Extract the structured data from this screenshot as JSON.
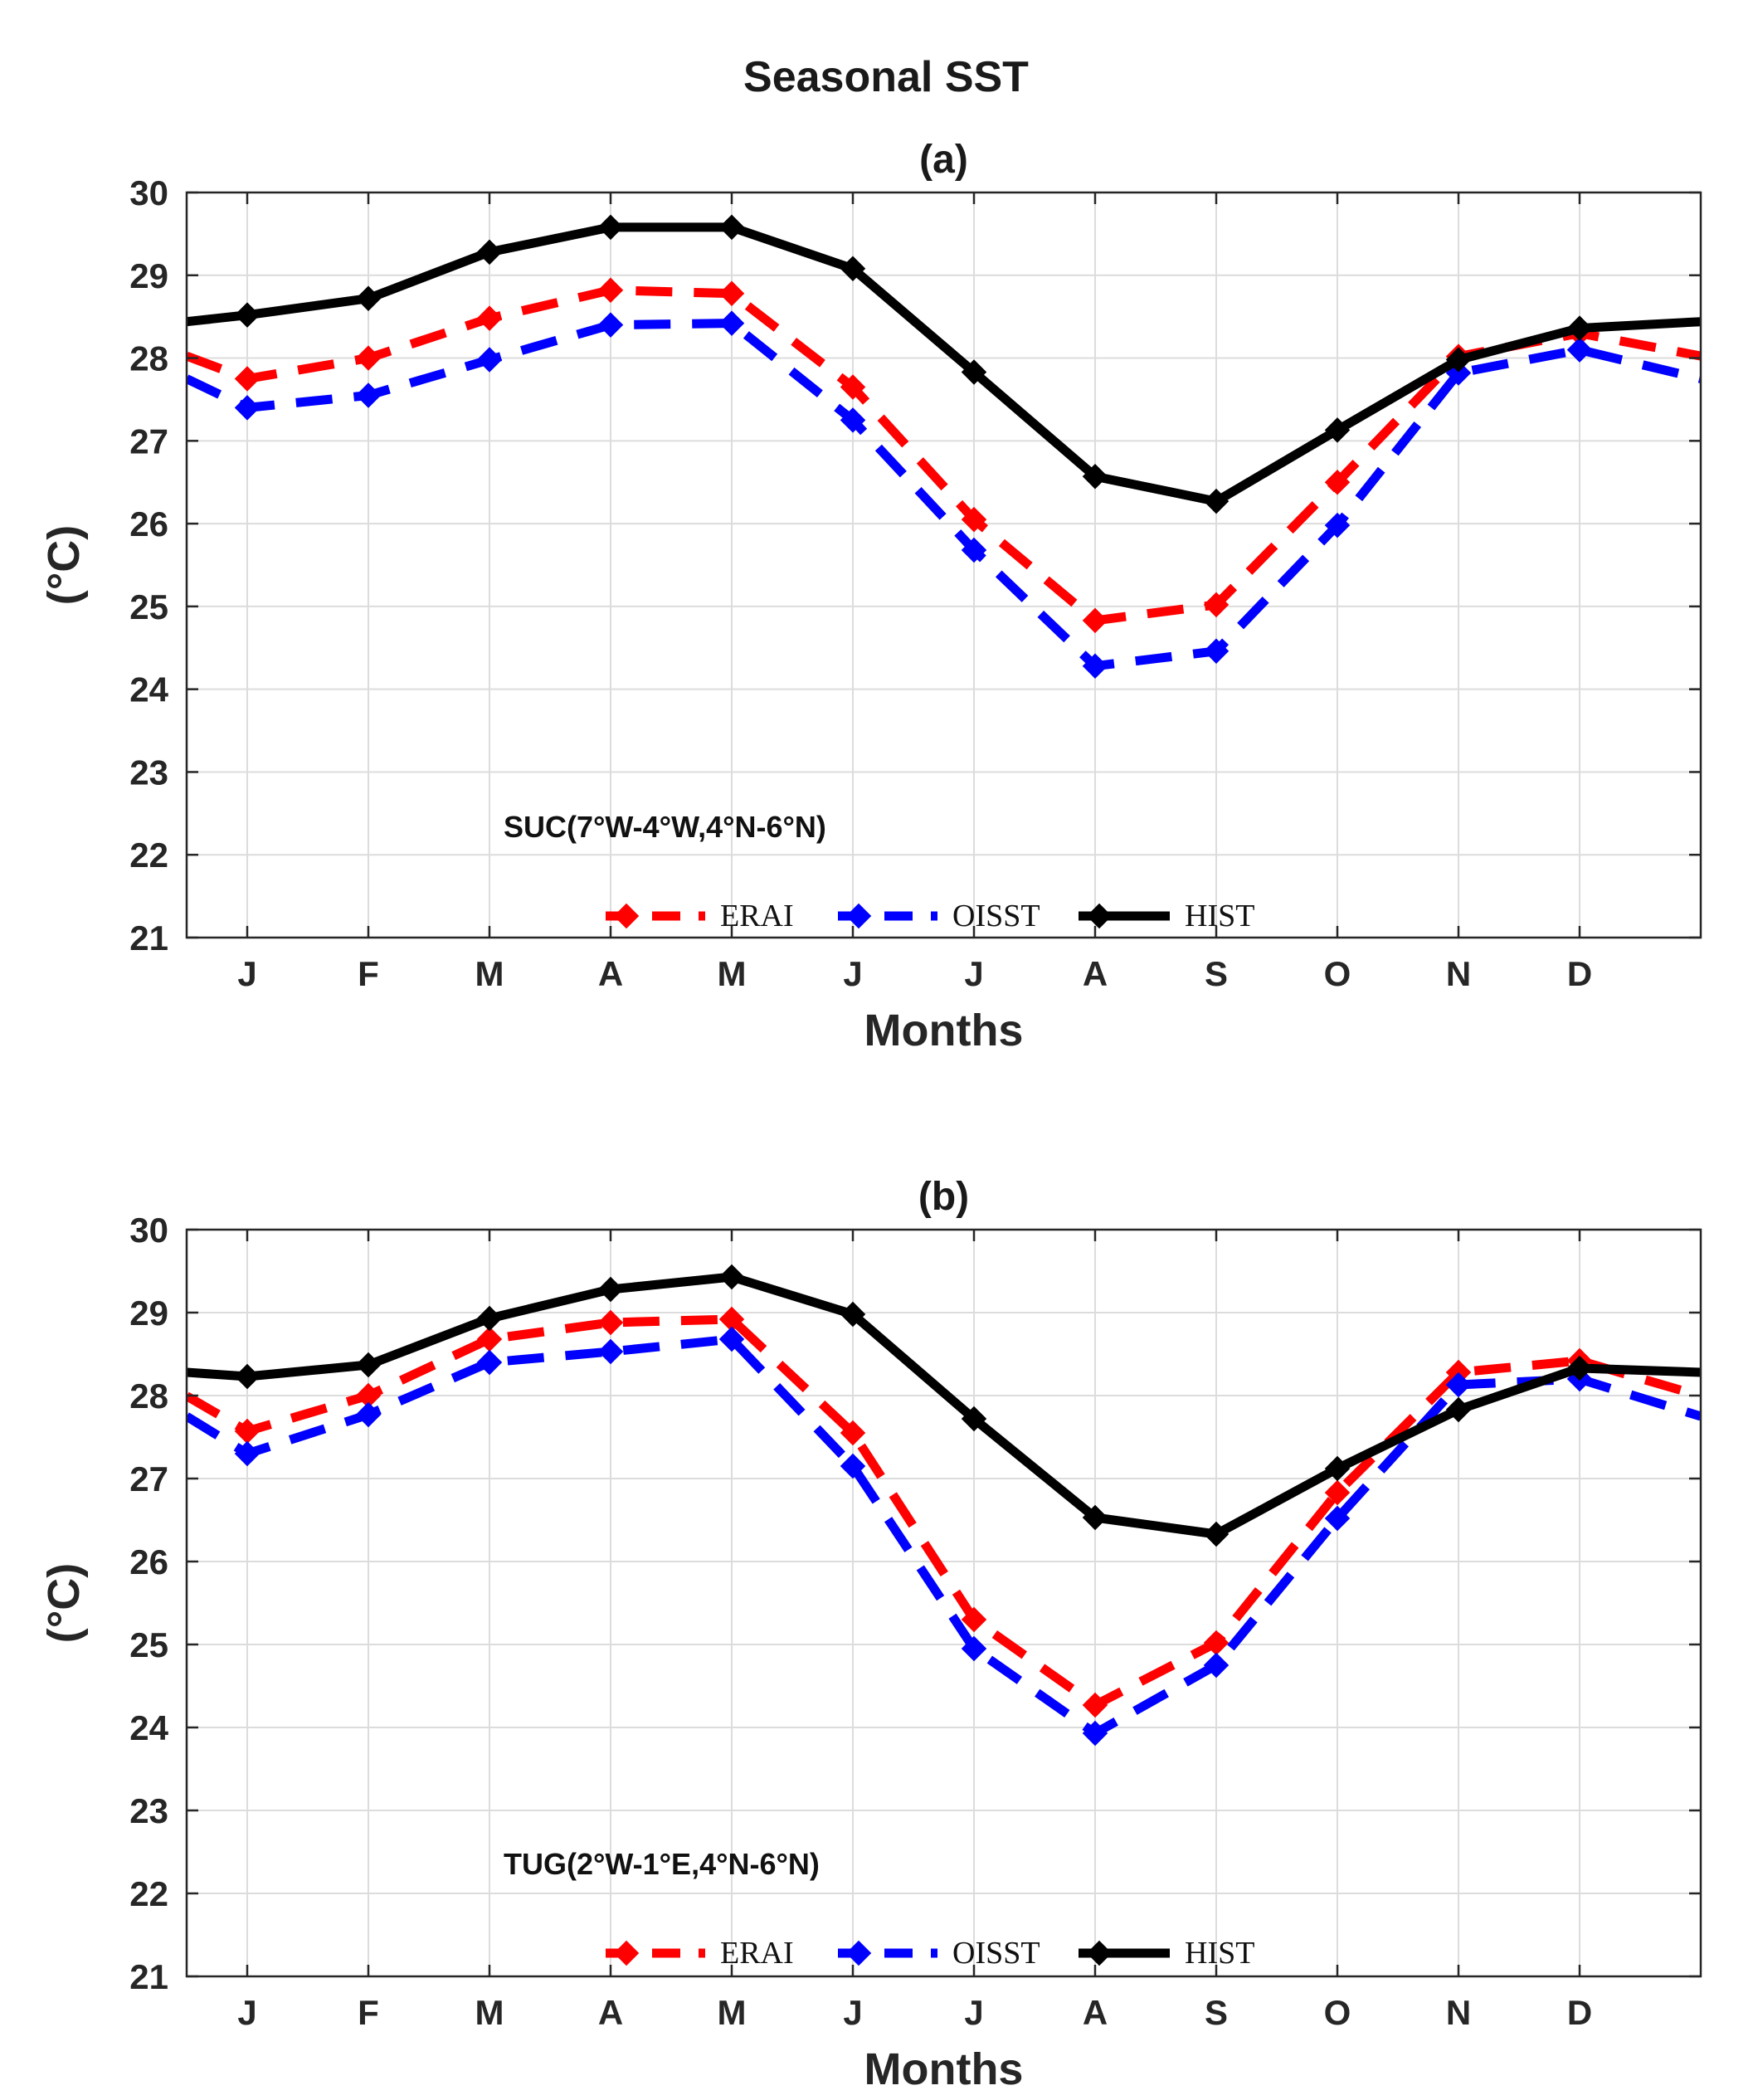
{
  "figure_title": "Seasonal SST",
  "chart_data": [
    {
      "type": "line",
      "panel_label": "(a)",
      "region_label": "SUC(7°W-4°W,4°N-6°N)",
      "xlabel": "Months",
      "ylabel": "(°C)",
      "categories": [
        "J",
        "F",
        "M",
        "A",
        "M",
        "J",
        "J",
        "A",
        "S",
        "O",
        "N",
        "D"
      ],
      "yticks": [
        "21",
        "22",
        "23",
        "24",
        "25",
        "26",
        "27",
        "28",
        "29",
        "30"
      ],
      "ylim": [
        21,
        30
      ],
      "grid": true,
      "legend_location": "lower-center",
      "series": [
        {
          "name": "ERAI",
          "color": "#ff0000",
          "style": "dashed",
          "values": [
            27.75,
            28.0,
            28.48,
            28.82,
            28.78,
            27.65,
            26.05,
            24.83,
            25.02,
            26.5,
            28.02,
            28.3
          ]
        },
        {
          "name": "OISST",
          "color": "#0000ff",
          "style": "dashed",
          "values": [
            27.4,
            27.55,
            27.98,
            28.4,
            28.42,
            27.25,
            25.68,
            24.28,
            24.46,
            25.98,
            27.82,
            28.1
          ]
        },
        {
          "name": "HIST",
          "color": "#000000",
          "style": "solid",
          "values": [
            28.52,
            28.72,
            29.28,
            29.58,
            29.58,
            29.08,
            27.83,
            26.57,
            26.27,
            27.13,
            27.98,
            28.36
          ]
        }
      ]
    },
    {
      "type": "line",
      "panel_label": "(b)",
      "region_label": "TUG(2°W-1°E,4°N-6°N)",
      "xlabel": "Months",
      "ylabel": "(°C)",
      "categories": [
        "J",
        "F",
        "M",
        "A",
        "M",
        "J",
        "J",
        "A",
        "S",
        "O",
        "N",
        "D"
      ],
      "yticks": [
        "21",
        "22",
        "23",
        "24",
        "25",
        "26",
        "27",
        "28",
        "29",
        "30"
      ],
      "ylim": [
        21,
        30
      ],
      "grid": true,
      "legend_location": "lower-center",
      "series": [
        {
          "name": "ERAI",
          "color": "#ff0000",
          "style": "dashed",
          "values": [
            27.57,
            28.0,
            28.68,
            28.88,
            28.92,
            27.55,
            25.3,
            24.27,
            25.02,
            26.83,
            28.28,
            28.42
          ]
        },
        {
          "name": "OISST",
          "color": "#0000ff",
          "style": "dashed",
          "values": [
            27.3,
            27.77,
            28.4,
            28.53,
            28.68,
            27.15,
            24.95,
            23.93,
            24.75,
            26.52,
            28.13,
            28.2
          ]
        },
        {
          "name": "HIST",
          "color": "#000000",
          "style": "solid",
          "values": [
            28.23,
            28.37,
            28.93,
            29.28,
            29.43,
            28.98,
            27.72,
            26.53,
            26.33,
            27.12,
            27.83,
            28.33
          ]
        }
      ]
    }
  ]
}
